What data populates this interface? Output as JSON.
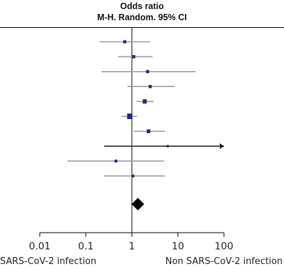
{
  "header": {
    "line1": "Odds ratio",
    "line2": "M-H. Random. 95% CI"
  },
  "footer": {
    "left_label": "SARS-CoV-2 infection",
    "right_label": "Non SARS-CoV-2 infection"
  },
  "colors": {
    "ci_line": "#9b9b9b",
    "point": "#1f2a7a",
    "diamond": "#000000",
    "axis": "#000000"
  },
  "chart_data": {
    "type": "forest",
    "x_scale": "log",
    "xlim": [
      0.01,
      100
    ],
    "ticks": [
      "0.01",
      "0.1",
      "1",
      "10",
      "100"
    ],
    "tick_values": [
      0.01,
      0.1,
      1,
      10,
      100
    ],
    "reference_line": 1,
    "studies": [
      {
        "or": 0.7,
        "lo": 0.2,
        "hi": 2.5,
        "weight": 1
      },
      {
        "or": 1.1,
        "lo": 0.5,
        "hi": 2.8,
        "weight": 1
      },
      {
        "or": 2.2,
        "lo": 0.22,
        "hi": 24,
        "weight": 1
      },
      {
        "or": 2.5,
        "lo": 0.8,
        "hi": 8.5,
        "weight": 1
      },
      {
        "or": 1.9,
        "lo": 1.25,
        "hi": 3.0,
        "weight": 1.6
      },
      {
        "or": 0.9,
        "lo": 0.6,
        "hi": 1.3,
        "weight": 2.3
      },
      {
        "or": 2.3,
        "lo": 1.1,
        "hi": 5.2,
        "weight": 1.3
      },
      {
        "or": 6.0,
        "lo": 0.25,
        "hi": 100,
        "weight": 0.5,
        "arrow_right": true
      },
      {
        "or": 0.45,
        "lo": 0.04,
        "hi": 5.0,
        "weight": 0.8
      },
      {
        "or": 1.05,
        "lo": 0.25,
        "hi": 5.2,
        "weight": 0.8
      }
    ],
    "pooled": {
      "or": 1.35
    }
  }
}
